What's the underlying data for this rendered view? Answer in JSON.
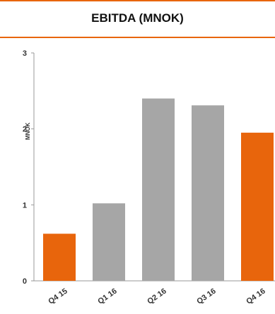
{
  "colors": {
    "accent": "#e8650c",
    "neutral": "#a6a6a6",
    "axis": "#999999"
  },
  "chart_data": {
    "type": "bar",
    "title": "EBITDA (MNOK)",
    "ylabel": "MNOK",
    "xlabel": "",
    "categories": [
      "Q4 15",
      "Q1 16",
      "Q2 16",
      "Q3 16",
      "Q4 16"
    ],
    "values": [
      0.62,
      1.02,
      2.4,
      2.31,
      1.95
    ],
    "highlighted": [
      true,
      false,
      false,
      false,
      true
    ],
    "ylim": [
      0,
      3
    ],
    "yticks": [
      0,
      1,
      2,
      3
    ],
    "grid": false,
    "legend": "none"
  }
}
